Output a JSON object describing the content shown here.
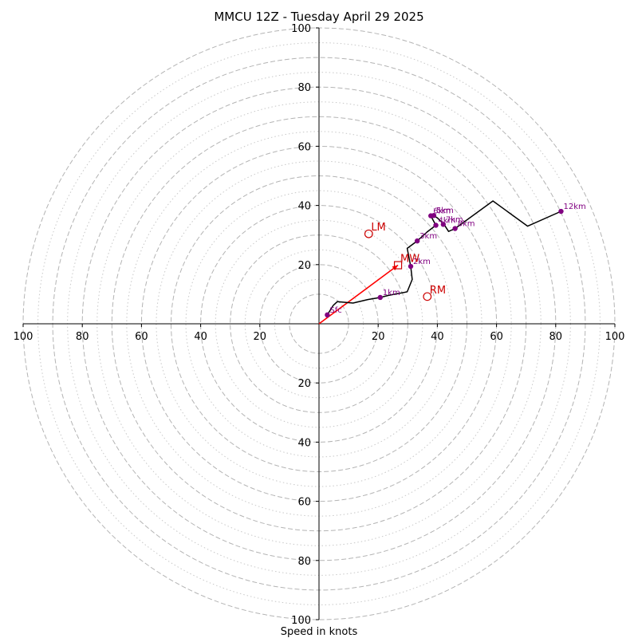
{
  "chart_data": {
    "type": "hodograph",
    "title": "MMCU 12Z - Tuesday April 29 2025",
    "xlabel": "Speed in knots",
    "ylabel": "",
    "xlim": [
      -100,
      100
    ],
    "ylim": [
      -100,
      100
    ],
    "x_ticks": [
      "100",
      "80",
      "60",
      "40",
      "20",
      "20",
      "40",
      "60",
      "80",
      "100"
    ],
    "y_ticks": [
      "100",
      "80",
      "60",
      "40",
      "20",
      "20",
      "40",
      "60",
      "80",
      "100"
    ],
    "rings_major": [
      10,
      20,
      30,
      40,
      50,
      60,
      70,
      80,
      90,
      100
    ],
    "rings_minor": [
      15,
      25,
      35,
      45,
      55,
      65,
      75,
      85,
      95
    ],
    "profile": {
      "color": "#000000",
      "points": [
        {
          "u": 2.8,
          "v": 3.0
        },
        {
          "u": 4.8,
          "v": 6.2
        },
        {
          "u": 6.2,
          "v": 7.5
        },
        {
          "u": 11.5,
          "v": 7.0
        },
        {
          "u": 16.5,
          "v": 8.2
        },
        {
          "u": 20.7,
          "v": 8.9
        },
        {
          "u": 23.5,
          "v": 9.6
        },
        {
          "u": 29.8,
          "v": 10.8
        },
        {
          "u": 31.5,
          "v": 15.0
        },
        {
          "u": 31.0,
          "v": 19.4
        },
        {
          "u": 29.8,
          "v": 25.5
        },
        {
          "u": 33.2,
          "v": 28.0
        },
        {
          "u": 36.5,
          "v": 31.0
        },
        {
          "u": 39.5,
          "v": 33.3
        },
        {
          "u": 37.8,
          "v": 36.5
        },
        {
          "u": 38.8,
          "v": 36.6
        },
        {
          "u": 40.0,
          "v": 35.8
        },
        {
          "u": 41.2,
          "v": 34.6
        },
        {
          "u": 42.5,
          "v": 33.2
        },
        {
          "u": 43.8,
          "v": 31.2
        },
        {
          "u": 46.0,
          "v": 32.2
        },
        {
          "u": 58.8,
          "v": 41.5
        },
        {
          "u": 70.5,
          "v": 33.0
        },
        {
          "u": 81.8,
          "v": 38.0
        }
      ]
    },
    "height_markers": {
      "color": "#800080",
      "points": [
        {
          "label": "Sfc",
          "u": 2.8,
          "v": 3.0
        },
        {
          "label": "1km",
          "u": 20.7,
          "v": 8.9
        },
        {
          "label": "2km",
          "u": 31.0,
          "v": 19.4
        },
        {
          "label": "3km",
          "u": 33.2,
          "v": 28.0
        },
        {
          "label": "4km",
          "u": 39.5,
          "v": 33.3
        },
        {
          "label": "5km",
          "u": 38.8,
          "v": 36.6
        },
        {
          "label": "6km",
          "u": 37.8,
          "v": 36.5
        },
        {
          "label": "7km",
          "u": 42.0,
          "v": 33.6
        },
        {
          "label": "8km",
          "u": 46.0,
          "v": 32.2
        },
        {
          "label": "12km",
          "u": 81.8,
          "v": 38.0
        }
      ]
    },
    "storm_motions": {
      "color": "#cc0000",
      "items": [
        {
          "label": "LM",
          "u": 16.8,
          "v": 30.4,
          "marker": "circle"
        },
        {
          "label": "RM",
          "u": 36.6,
          "v": 9.2,
          "marker": "circle"
        },
        {
          "label": "MW",
          "u": 26.7,
          "v": 19.8,
          "marker": "square"
        }
      ]
    },
    "mean_wind_arrow": {
      "color": "#ff0000",
      "from": {
        "u": 0,
        "v": 0
      },
      "to": {
        "u": 26.7,
        "v": 19.8
      }
    }
  }
}
